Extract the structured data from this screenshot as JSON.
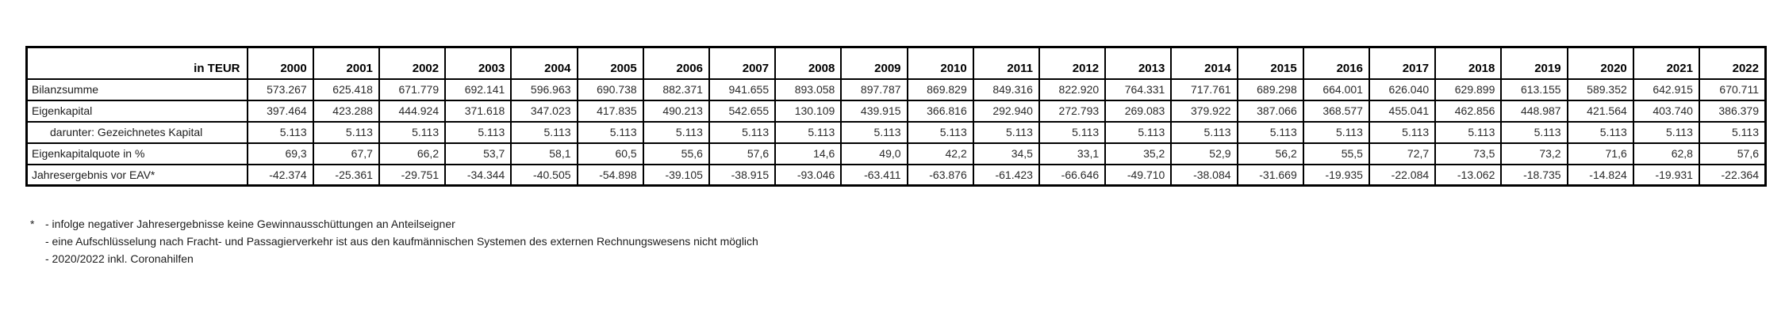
{
  "table": {
    "unit_label": "in TEUR",
    "years": [
      "2000",
      "2001",
      "2002",
      "2003",
      "2004",
      "2005",
      "2006",
      "2007",
      "2008",
      "2009",
      "2010",
      "2011",
      "2012",
      "2013",
      "2014",
      "2015",
      "2016",
      "2017",
      "2018",
      "2019",
      "2020",
      "2021",
      "2022"
    ],
    "rows": [
      {
        "key": "bilanzsumme",
        "label": "Bilanzsumme",
        "indent": false,
        "values": [
          "573.267",
          "625.418",
          "671.779",
          "692.141",
          "596.963",
          "690.738",
          "882.371",
          "941.655",
          "893.058",
          "897.787",
          "869.829",
          "849.316",
          "822.920",
          "764.331",
          "717.761",
          "689.298",
          "664.001",
          "626.040",
          "629.899",
          "613.155",
          "589.352",
          "642.915",
          "670.711"
        ]
      },
      {
        "key": "eigenkapital",
        "label": "Eigenkapital",
        "indent": false,
        "values": [
          "397.464",
          "423.288",
          "444.924",
          "371.618",
          "347.023",
          "417.835",
          "490.213",
          "542.655",
          "130.109",
          "439.915",
          "366.816",
          "292.940",
          "272.793",
          "269.083",
          "379.922",
          "387.066",
          "368.577",
          "455.041",
          "462.856",
          "448.987",
          "421.564",
          "403.740",
          "386.379"
        ]
      },
      {
        "key": "gezeichnetes-kapital",
        "label": "darunter: Gezeichnetes Kapital",
        "indent": true,
        "values": [
          "5.113",
          "5.113",
          "5.113",
          "5.113",
          "5.113",
          "5.113",
          "5.113",
          "5.113",
          "5.113",
          "5.113",
          "5.113",
          "5.113",
          "5.113",
          "5.113",
          "5.113",
          "5.113",
          "5.113",
          "5.113",
          "5.113",
          "5.113",
          "5.113",
          "5.113",
          "5.113"
        ]
      },
      {
        "key": "eigenkapitalquote",
        "label": "Eigenkapitalquote in %",
        "indent": false,
        "values": [
          "69,3",
          "67,7",
          "66,2",
          "53,7",
          "58,1",
          "60,5",
          "55,6",
          "57,6",
          "14,6",
          "49,0",
          "42,2",
          "34,5",
          "33,1",
          "35,2",
          "52,9",
          "56,2",
          "55,5",
          "72,7",
          "73,5",
          "73,2",
          "71,6",
          "62,8",
          "57,6"
        ]
      },
      {
        "key": "jahresergebnis",
        "label": "Jahresergebnis vor EAV*",
        "indent": false,
        "values": [
          "-42.374",
          "-25.361",
          "-29.751",
          "-34.344",
          "-40.505",
          "-54.898",
          "-39.105",
          "-38.915",
          "-93.046",
          "-63.411",
          "-63.876",
          "-61.423",
          "-66.646",
          "-49.710",
          "-38.084",
          "-31.669",
          "-19.935",
          "-22.084",
          "-13.062",
          "-18.735",
          "-14.824",
          "-19.931",
          "-22.364"
        ]
      }
    ]
  },
  "footnotes": {
    "marker": "*",
    "lines": [
      "- infolge negativer Jahresergebnisse keine Gewinnausschüttungen an Anteilseigner",
      "- eine Aufschlüsselung nach Fracht- und Passagierverkehr ist aus den kaufmännischen Systemen des externen Rechnungswesens nicht möglich",
      "- 2020/2022 inkl. Coronahilfen"
    ]
  }
}
